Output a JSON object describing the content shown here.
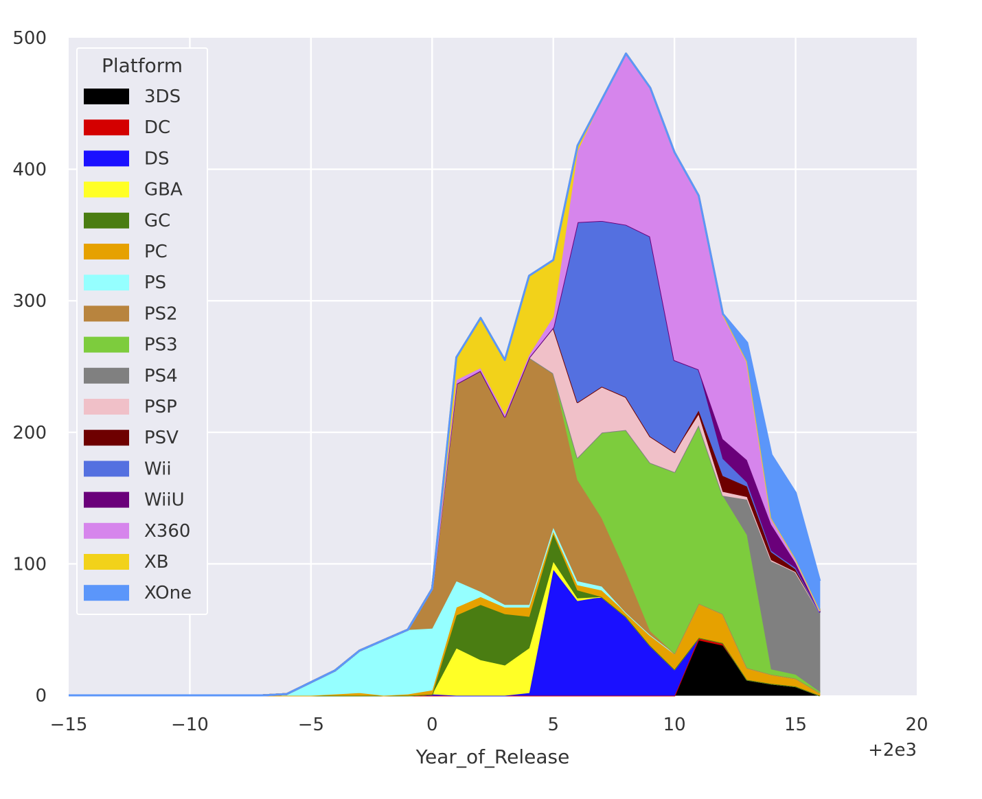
{
  "chart_data": {
    "type": "area",
    "stacked": true,
    "xlabel": "Year_of_Release",
    "ylabel": "",
    "x_offset_label": "+2e3",
    "xlim": [
      -15,
      20
    ],
    "ylim": [
      0,
      500
    ],
    "xticks": [
      -15,
      -10,
      -5,
      0,
      5,
      10,
      15,
      20
    ],
    "xtick_labels": [
      "−15",
      "−10",
      "−5",
      "0",
      "5",
      "10",
      "15",
      "20"
    ],
    "yticks": [
      0,
      100,
      200,
      300,
      400,
      500
    ],
    "ytick_labels": [
      "0",
      "100",
      "200",
      "300",
      "400",
      "500"
    ],
    "grid": true,
    "legend": {
      "title": "Platform",
      "placement": "upper-left"
    },
    "x": [
      -15,
      -14,
      -13,
      -12,
      -11,
      -10,
      -9,
      -8,
      -7,
      -6,
      -5,
      -4,
      -3,
      -2,
      -1,
      0,
      1,
      2,
      3,
      4,
      5,
      6,
      7,
      8,
      9,
      10,
      11,
      12,
      13,
      14,
      15,
      16
    ],
    "series": [
      {
        "name": "3DS",
        "color": "#000000",
        "values": [
          0,
          0,
          0,
          0,
          0,
          0,
          0,
          0,
          0,
          0,
          0,
          0,
          0,
          0,
          0,
          0,
          0,
          0,
          0,
          0,
          0,
          0,
          0,
          0,
          0,
          0,
          42,
          38,
          12,
          9,
          7,
          0
        ]
      },
      {
        "name": "DC",
        "color": "#d40000",
        "values": [
          0,
          0,
          0,
          0,
          0,
          0,
          0,
          0,
          0,
          0,
          0,
          0,
          0,
          0,
          0,
          0,
          0,
          0,
          0,
          0,
          0,
          0,
          0,
          0,
          0,
          0,
          2,
          2,
          0,
          0,
          0,
          0
        ]
      },
      {
        "name": "DS",
        "color": "#1a10ff",
        "values": [
          0,
          0,
          0,
          0,
          0,
          0,
          0,
          0,
          0,
          0,
          0,
          0,
          0,
          0,
          0,
          1,
          0,
          0,
          0,
          2,
          96,
          72,
          75,
          60,
          38,
          20,
          0,
          0,
          0,
          0,
          0,
          0
        ]
      },
      {
        "name": "GBA",
        "color": "#ffff26",
        "values": [
          0,
          0,
          0,
          0,
          0,
          0,
          0,
          0,
          0,
          0,
          0,
          0,
          0,
          0,
          0,
          0,
          36,
          27,
          23,
          34,
          6,
          2,
          0,
          0,
          0,
          0,
          0,
          0,
          0,
          0,
          0,
          0
        ]
      },
      {
        "name": "GC",
        "color": "#4a7d12",
        "values": [
          0,
          0,
          0,
          0,
          0,
          0,
          0,
          0,
          0,
          0,
          0,
          0,
          0,
          0,
          0,
          0,
          25,
          42,
          39,
          24,
          21,
          6,
          0,
          0,
          0,
          0,
          0,
          0,
          0,
          0,
          0,
          0
        ]
      },
      {
        "name": "PC",
        "color": "#e6a100",
        "values": [
          0,
          0,
          0,
          0,
          0,
          0,
          0,
          0,
          0,
          0,
          0,
          1,
          2,
          0,
          1,
          3,
          6,
          6,
          5,
          7,
          2,
          4,
          5,
          3,
          8,
          12,
          26,
          22,
          9,
          7,
          6,
          2
        ]
      },
      {
        "name": "PS",
        "color": "#95ffff",
        "values": [
          0,
          0,
          0,
          0,
          0,
          0,
          0,
          0,
          0,
          1,
          10,
          18,
          32,
          42,
          49,
          47,
          20,
          4,
          2,
          2,
          3,
          3,
          3,
          0,
          0,
          0,
          0,
          0,
          0,
          0,
          0,
          0
        ]
      },
      {
        "name": "PS2",
        "color": "#b8843e",
        "values": [
          0,
          0,
          0,
          0,
          0,
          0,
          0,
          0,
          0,
          0,
          0,
          0,
          0,
          0,
          0,
          30,
          150,
          168,
          143,
          188,
          117,
          77,
          52,
          31,
          3,
          0,
          0,
          0,
          0,
          0,
          0,
          0
        ]
      },
      {
        "name": "PS3",
        "color": "#7dcc3d",
        "values": [
          0,
          0,
          0,
          0,
          0,
          0,
          0,
          0,
          0,
          0,
          0,
          0,
          0,
          0,
          0,
          0,
          0,
          0,
          0,
          0,
          0,
          17,
          65,
          108,
          128,
          138,
          136,
          90,
          101,
          4,
          3,
          1
        ]
      },
      {
        "name": "PS4",
        "color": "#808080",
        "values": [
          0,
          0,
          0,
          0,
          0,
          0,
          0,
          0,
          0,
          0,
          0,
          0,
          0,
          0,
          0,
          0,
          0,
          0,
          0,
          0,
          0,
          0,
          0,
          0,
          0,
          0,
          0,
          0,
          27,
          82,
          78,
          60
        ]
      },
      {
        "name": "PSP",
        "color": "#f0c0c8",
        "values": [
          0,
          0,
          0,
          0,
          0,
          0,
          0,
          0,
          0,
          0,
          0,
          0,
          0,
          0,
          0,
          0,
          0,
          0,
          0,
          0,
          35,
          42,
          35,
          25,
          20,
          15,
          8,
          3,
          2,
          1,
          0,
          0
        ]
      },
      {
        "name": "PSV",
        "color": "#6e0000",
        "values": [
          0,
          0,
          0,
          0,
          0,
          0,
          0,
          0,
          0,
          0,
          0,
          0,
          0,
          0,
          0,
          0,
          0,
          0,
          0,
          0,
          0,
          0,
          0,
          0,
          0,
          0,
          3,
          12,
          8,
          6,
          2,
          0
        ]
      },
      {
        "name": "Wii",
        "color": "#5470e0",
        "values": [
          0,
          0,
          0,
          0,
          0,
          0,
          0,
          0,
          0,
          0,
          0,
          0,
          0,
          0,
          0,
          0,
          0,
          0,
          0,
          0,
          0,
          137,
          126,
          131,
          152,
          70,
          31,
          13,
          3,
          1,
          1,
          0
        ]
      },
      {
        "name": "WiiU",
        "color": "#6a007a",
        "values": [
          0,
          0,
          0,
          0,
          0,
          0,
          0,
          0,
          0,
          0,
          0,
          0,
          0,
          0,
          0,
          0,
          0,
          0,
          0,
          0,
          0,
          0,
          0,
          0,
          0,
          0,
          0,
          15,
          17,
          20,
          4,
          1
        ]
      },
      {
        "name": "X360",
        "color": "#d685ec",
        "values": [
          0,
          0,
          0,
          0,
          0,
          0,
          0,
          0,
          0,
          0,
          0,
          0,
          0,
          0,
          0,
          0,
          3,
          2,
          2,
          2,
          8,
          54,
          92,
          130,
          113,
          158,
          132,
          95,
          75,
          5,
          2,
          0
        ]
      },
      {
        "name": "XB",
        "color": "#f2d21a",
        "values": [
          0,
          0,
          0,
          0,
          0,
          0,
          0,
          0,
          0,
          0,
          0,
          0,
          0,
          0,
          0,
          0,
          17,
          38,
          41,
          60,
          43,
          4,
          0,
          0,
          0,
          0,
          0,
          0,
          0,
          0,
          1,
          1
        ]
      },
      {
        "name": "XOne",
        "color": "#5b96fa",
        "values": [
          0,
          0,
          0,
          0,
          0,
          0,
          0,
          0,
          0,
          0,
          0,
          0,
          0,
          0,
          0,
          0,
          0,
          0,
          0,
          0,
          0,
          0,
          0,
          0,
          0,
          0,
          0,
          0,
          14,
          48,
          50,
          22
        ]
      }
    ]
  }
}
